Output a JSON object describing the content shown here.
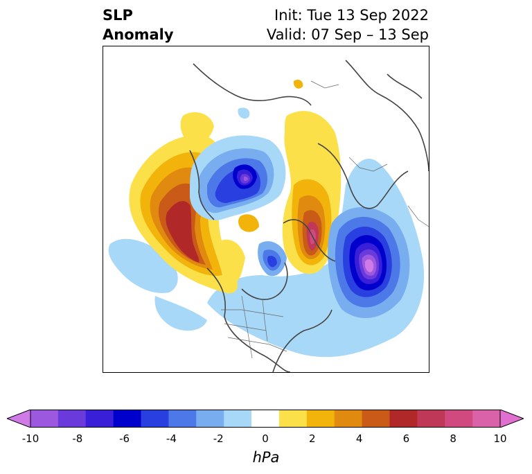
{
  "title": {
    "left_line1": "SLP",
    "left_line2": "Anomaly",
    "right_line1": "Init: Tue 13 Sep 2022",
    "right_line2": "Valid: 07 Sep – 13 Sep"
  },
  "colorbar": {
    "label": "hPa",
    "ticks": [
      "-10",
      "-8",
      "-6",
      "-4",
      "-2",
      "0",
      "2",
      "4",
      "6",
      "8",
      "10"
    ],
    "range": [
      -10,
      10
    ],
    "colors": [
      "#d07ae8",
      "#9d58e0",
      "#6a3adb",
      "#3a1fd8",
      "#0000cc",
      "#2a3fe0",
      "#4c78e8",
      "#78aef0",
      "#a8d8f8",
      "#ffffff",
      "#fbe04a",
      "#f2b40a",
      "#e08a10",
      "#c95a18",
      "#b02828",
      "#c03858",
      "#d04a80",
      "#d962a8",
      "#e070d0"
    ]
  },
  "map": {
    "projection": "north-polar-stereographic",
    "field": "sea-level-pressure-anomaly",
    "features": [
      {
        "name": "positive-anomaly-north-pacific",
        "peak_hpa": 6
      },
      {
        "name": "positive-anomaly-greenland",
        "peak_hpa": 8
      },
      {
        "name": "negative-anomaly-north-atlantic",
        "peak_hpa": -10
      },
      {
        "name": "negative-anomaly-central-arctic",
        "peak_hpa": -8
      },
      {
        "name": "negative-anomaly-hudson-bay",
        "peak_hpa": -6
      }
    ]
  }
}
